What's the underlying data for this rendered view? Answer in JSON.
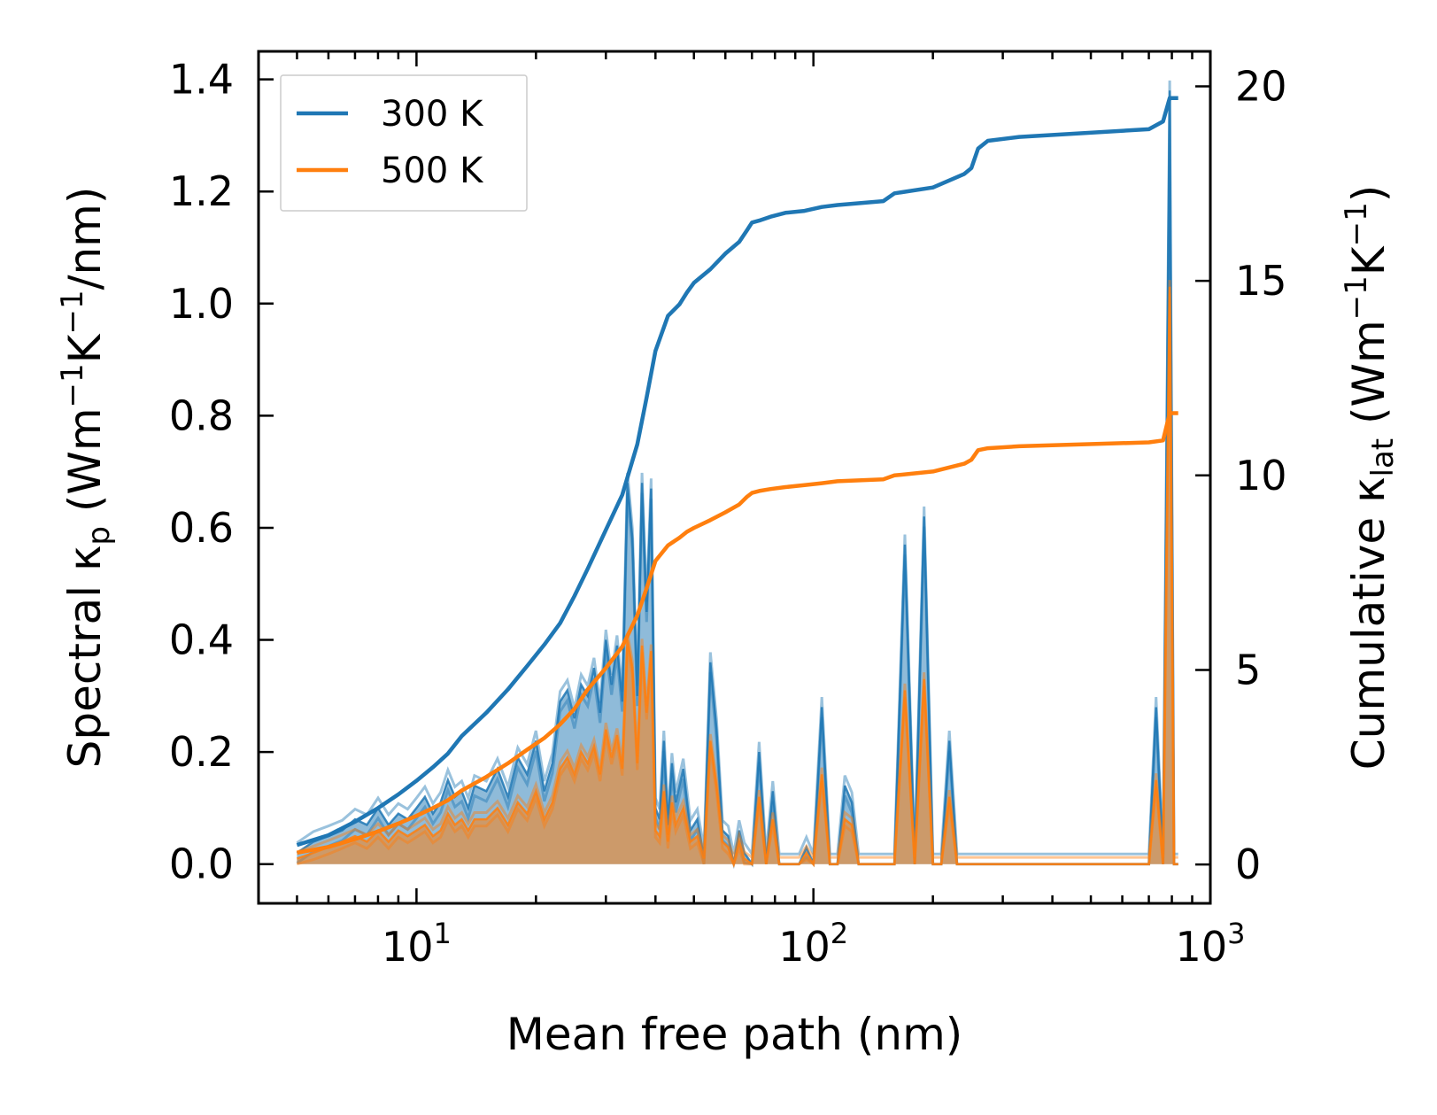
{
  "chart_data": {
    "type": "line",
    "title": "",
    "xlabel": "Mean free path (nm)",
    "xscale": "log",
    "xlim": [
      4.0,
      1000
    ],
    "x_ticks": [
      {
        "value": 10,
        "base": "10",
        "exp": "1"
      },
      {
        "value": 100,
        "base": "10",
        "exp": "2"
      },
      {
        "value": 1000,
        "base": "10",
        "exp": "3"
      }
    ],
    "y_left": {
      "label_parts": {
        "t1": "Spectral κ",
        "sub": "p",
        "t2": " (Wm",
        "sup1": "−1",
        "t3": "K",
        "sup2": "−1",
        "t4": "/nm)"
      },
      "ylim": [
        -0.07,
        1.45
      ],
      "ticks": [
        "0.0",
        "0.2",
        "0.4",
        "0.6",
        "0.8",
        "1.0",
        "1.2",
        "1.4"
      ]
    },
    "y_right": {
      "label_parts": {
        "t1": "Cumulative κ",
        "sub": "lat",
        "t2": " (Wm",
        "sup1": "−1",
        "t3": "K",
        "sup2": "−1",
        "t4": ")"
      },
      "ylim": [
        -1.0,
        20.9
      ],
      "ticks": [
        "0",
        "5",
        "10",
        "15",
        "20"
      ]
    },
    "legend": {
      "position": "top-left",
      "entries": [
        {
          "label": "300 K",
          "color": "#1f77b4"
        },
        {
          "label": "500 K",
          "color": "#ff7f0e"
        }
      ]
    },
    "series": [
      {
        "name": "300 K",
        "color": "#1f77b4",
        "axis": "right",
        "kind": "cumulative",
        "x": [
          5.0,
          6.0,
          7.0,
          8.0,
          9.0,
          10.0,
          11.0,
          12.0,
          13.0,
          15.0,
          17.0,
          19.0,
          21.0,
          23.0,
          25.0,
          27.0,
          30.0,
          33.0,
          36.0,
          38.0,
          40.0,
          43.0,
          46.0,
          48.0,
          50.0,
          55.0,
          60.0,
          65.0,
          68.0,
          70.0,
          73.0,
          78.0,
          85.0,
          95.0,
          105.0,
          115.0,
          150.0,
          160.0,
          200.0,
          240.0,
          250.0,
          260.0,
          275.0,
          330.0,
          700.0,
          760.0,
          790.0,
          830.0
        ],
        "values": [
          0.5,
          0.75,
          1.1,
          1.45,
          1.8,
          2.15,
          2.5,
          2.85,
          3.3,
          3.9,
          4.5,
          5.1,
          5.65,
          6.2,
          6.9,
          7.6,
          8.6,
          9.5,
          10.8,
          12.0,
          13.2,
          14.1,
          14.4,
          14.7,
          14.95,
          15.3,
          15.7,
          16.0,
          16.3,
          16.5,
          16.55,
          16.65,
          16.75,
          16.8,
          16.9,
          16.95,
          17.05,
          17.25,
          17.4,
          17.75,
          17.9,
          18.4,
          18.6,
          18.7,
          18.9,
          19.1,
          19.7,
          19.7
        ]
      },
      {
        "name": "500 K",
        "color": "#ff7f0e",
        "axis": "right",
        "kind": "cumulative",
        "x": [
          5.0,
          6.0,
          7.0,
          8.0,
          9.0,
          10.0,
          11.0,
          12.0,
          13.0,
          15.0,
          17.0,
          19.0,
          21.0,
          23.0,
          25.0,
          27.0,
          30.0,
          33.0,
          36.0,
          38.0,
          40.0,
          43.0,
          46.0,
          48.0,
          50.0,
          55.0,
          60.0,
          65.0,
          68.0,
          70.0,
          73.0,
          78.0,
          85.0,
          95.0,
          105.0,
          115.0,
          150.0,
          160.0,
          200.0,
          240.0,
          250.0,
          260.0,
          275.0,
          330.0,
          700.0,
          760.0,
          790.0,
          830.0
        ],
        "values": [
          0.3,
          0.45,
          0.65,
          0.85,
          1.05,
          1.25,
          1.45,
          1.65,
          1.9,
          2.25,
          2.6,
          2.95,
          3.25,
          3.6,
          4.0,
          4.5,
          5.05,
          5.6,
          6.4,
          7.1,
          7.8,
          8.2,
          8.4,
          8.55,
          8.65,
          8.85,
          9.05,
          9.25,
          9.45,
          9.55,
          9.6,
          9.65,
          9.7,
          9.75,
          9.8,
          9.85,
          9.9,
          10.0,
          10.1,
          10.3,
          10.4,
          10.65,
          10.7,
          10.75,
          10.85,
          10.9,
          11.6,
          11.6
        ]
      },
      {
        "name": "300 K spectral",
        "color": "#1f77b4",
        "axis": "left",
        "kind": "spectral",
        "x": [
          5.0,
          5.5,
          6.0,
          6.5,
          7.0,
          7.5,
          8.0,
          8.5,
          9.0,
          9.5,
          10.0,
          10.5,
          11.0,
          11.5,
          12.0,
          12.5,
          13.0,
          13.5,
          14.0,
          15.0,
          16.0,
          17.0,
          18.0,
          19.0,
          20.0,
          21.0,
          22.0,
          23.0,
          24.0,
          25.0,
          26.0,
          27.0,
          28.0,
          29.0,
          30.0,
          31.0,
          32.0,
          33.0,
          34.0,
          35.0,
          36.0,
          37.0,
          38.0,
          39.0,
          40.0,
          41.0,
          42.0,
          43.0,
          44.0,
          45.0,
          47.0,
          49.0,
          51.0,
          53.0,
          55.0,
          57.0,
          59.0,
          61.0,
          63.0,
          65.0,
          67.0,
          70.0,
          73.0,
          76.0,
          79.0,
          82.0,
          85.0,
          88.0,
          92.0,
          96.0,
          100.0,
          105.0,
          110.0,
          115.0,
          120.0,
          125.0,
          130.0,
          140.0,
          150.0,
          160.0,
          170.0,
          180.0,
          190.0,
          200.0,
          210.0,
          220.0,
          230.0,
          240.0,
          250.0,
          260.0,
          270.0,
          280.0,
          290.0,
          300.0,
          320.0,
          340.0,
          360.0,
          700.0,
          730.0,
          760.0,
          790.0,
          810.0,
          830.0
        ],
        "values": [
          0.02,
          0.04,
          0.05,
          0.06,
          0.08,
          0.07,
          0.1,
          0.07,
          0.09,
          0.08,
          0.1,
          0.12,
          0.09,
          0.11,
          0.15,
          0.12,
          0.13,
          0.1,
          0.14,
          0.13,
          0.17,
          0.12,
          0.19,
          0.16,
          0.22,
          0.13,
          0.18,
          0.29,
          0.31,
          0.26,
          0.32,
          0.3,
          0.35,
          0.27,
          0.4,
          0.32,
          0.39,
          0.29,
          0.68,
          0.58,
          0.3,
          0.68,
          0.45,
          0.67,
          0.1,
          0.08,
          0.22,
          0.07,
          0.18,
          0.11,
          0.17,
          0.06,
          0.08,
          0.01,
          0.36,
          0.24,
          0.06,
          0.05,
          0.0,
          0.06,
          0.02,
          0.0,
          0.2,
          0.0,
          0.13,
          0.0,
          0.0,
          0.0,
          0.0,
          0.03,
          0.0,
          0.28,
          0.0,
          0.0,
          0.14,
          0.11,
          0.0,
          0.0,
          0.0,
          0.0,
          0.57,
          0.0,
          0.62,
          0.0,
          0.0,
          0.22,
          0.0,
          0.0,
          0.0,
          0.0,
          0.0,
          0.0,
          0.0,
          0.0,
          0.0,
          0.0,
          0.0,
          0.0,
          0.28,
          0.0,
          1.38,
          0.0,
          0.0
        ],
        "band": 0.018
      },
      {
        "name": "500 K spectral",
        "color": "#ff7f0e",
        "axis": "left",
        "kind": "spectral",
        "x": [
          5.0,
          5.5,
          6.0,
          6.5,
          7.0,
          7.5,
          8.0,
          8.5,
          9.0,
          9.5,
          10.0,
          10.5,
          11.0,
          11.5,
          12.0,
          12.5,
          13.0,
          13.5,
          14.0,
          15.0,
          16.0,
          17.0,
          18.0,
          19.0,
          20.0,
          21.0,
          22.0,
          23.0,
          24.0,
          25.0,
          26.0,
          27.0,
          28.0,
          29.0,
          30.0,
          31.0,
          32.0,
          33.0,
          34.0,
          35.0,
          36.0,
          37.0,
          38.0,
          39.0,
          40.0,
          41.0,
          42.0,
          43.0,
          44.0,
          45.0,
          47.0,
          49.0,
          51.0,
          53.0,
          55.0,
          57.0,
          59.0,
          61.0,
          63.0,
          65.0,
          67.0,
          70.0,
          73.0,
          76.0,
          79.0,
          82.0,
          85.0,
          88.0,
          92.0,
          96.0,
          100.0,
          105.0,
          110.0,
          115.0,
          120.0,
          125.0,
          130.0,
          140.0,
          150.0,
          160.0,
          170.0,
          180.0,
          190.0,
          200.0,
          210.0,
          220.0,
          230.0,
          240.0,
          250.0,
          260.0,
          270.0,
          280.0,
          290.0,
          300.0,
          320.0,
          340.0,
          360.0,
          700.0,
          730.0,
          760.0,
          790.0,
          810.0,
          830.0
        ],
        "values": [
          0.01,
          0.02,
          0.03,
          0.04,
          0.05,
          0.04,
          0.06,
          0.04,
          0.06,
          0.05,
          0.06,
          0.07,
          0.05,
          0.06,
          0.09,
          0.07,
          0.08,
          0.06,
          0.08,
          0.08,
          0.1,
          0.07,
          0.11,
          0.09,
          0.13,
          0.08,
          0.11,
          0.17,
          0.19,
          0.16,
          0.2,
          0.18,
          0.21,
          0.16,
          0.24,
          0.19,
          0.23,
          0.17,
          0.4,
          0.35,
          0.18,
          0.39,
          0.27,
          0.38,
          0.06,
          0.05,
          0.13,
          0.04,
          0.11,
          0.07,
          0.1,
          0.04,
          0.05,
          0.01,
          0.22,
          0.14,
          0.04,
          0.03,
          0.0,
          0.04,
          0.01,
          0.0,
          0.12,
          0.0,
          0.08,
          0.0,
          0.0,
          0.0,
          0.0,
          0.02,
          0.0,
          0.16,
          0.0,
          0.0,
          0.08,
          0.07,
          0.0,
          0.0,
          0.0,
          0.0,
          0.31,
          0.0,
          0.33,
          0.0,
          0.0,
          0.12,
          0.0,
          0.0,
          0.0,
          0.0,
          0.0,
          0.0,
          0.0,
          0.0,
          0.0,
          0.0,
          0.0,
          0.0,
          0.15,
          0.0,
          1.03,
          0.0,
          0.0
        ],
        "band": 0.012
      }
    ]
  }
}
